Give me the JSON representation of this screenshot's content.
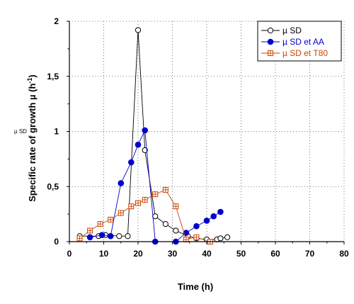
{
  "side_label": "µ SD",
  "chart_data": {
    "type": "line",
    "title": "",
    "xlabel": "Time (h)",
    "ylabel": "Specific rate of growth µ (h",
    "ylabel_sup": "-1",
    "ylabel_end": ")",
    "xlim": [
      0,
      80
    ],
    "ylim": [
      0,
      2
    ],
    "x_ticks": [
      0,
      10,
      20,
      30,
      40,
      50,
      60,
      70,
      80
    ],
    "x_tick_labels": [
      "0",
      "10",
      "20",
      "30",
      "40",
      "50",
      "60",
      "70",
      "80"
    ],
    "y_ticks": [
      0,
      0.5,
      1,
      1.5,
      2
    ],
    "y_tick_labels": [
      "0",
      "0,5",
      "1",
      "1,5",
      "2"
    ],
    "grid": true,
    "legend_position": "top-right",
    "series": [
      {
        "name": "µ SD",
        "color": "#000000",
        "marker": "open-circle",
        "points": [
          [
            3,
            0.05
          ],
          [
            8.5,
            0.05
          ],
          [
            10.5,
            0.06
          ],
          [
            14.5,
            0.05
          ],
          [
            17,
            0.05
          ],
          [
            20,
            1.92
          ],
          [
            22,
            0.83
          ],
          [
            25,
            0.23
          ],
          [
            28,
            0.16
          ],
          [
            31,
            0.1
          ],
          [
            34.5,
            0.05
          ],
          [
            37,
            0.03
          ],
          [
            40,
            0.02
          ],
          [
            43,
            0.02
          ],
          [
            44,
            0.03
          ],
          [
            46,
            0.04
          ]
        ]
      },
      {
        "name": "µ SD et AA",
        "color": "#0000cc",
        "marker": "filled-circle",
        "points": [
          [
            6,
            0.04
          ],
          [
            9.5,
            0.06
          ],
          [
            12,
            0.05
          ],
          [
            15,
            0.53
          ],
          [
            18,
            0.72
          ],
          [
            20,
            0.88
          ],
          [
            22,
            1.01
          ],
          [
            25,
            0.0
          ],
          [
            31,
            0.0
          ],
          [
            34,
            0.08
          ],
          [
            37,
            0.14
          ],
          [
            40,
            0.19
          ],
          [
            42,
            0.23
          ],
          [
            44,
            0.27
          ]
        ]
      },
      {
        "name": "µ SD et T80",
        "color": "#cc4400",
        "marker": "open-square-plus",
        "points": [
          [
            3,
            0.03
          ],
          [
            6,
            0.1
          ],
          [
            9,
            0.16
          ],
          [
            12,
            0.2
          ],
          [
            15,
            0.26
          ],
          [
            18,
            0.32
          ],
          [
            20,
            0.35
          ],
          [
            22,
            0.38
          ],
          [
            25,
            0.43
          ],
          [
            28,
            0.47
          ],
          [
            31,
            0.32
          ],
          [
            34,
            0.02
          ],
          [
            37,
            0.04
          ],
          [
            41,
            0.0
          ]
        ]
      }
    ]
  }
}
